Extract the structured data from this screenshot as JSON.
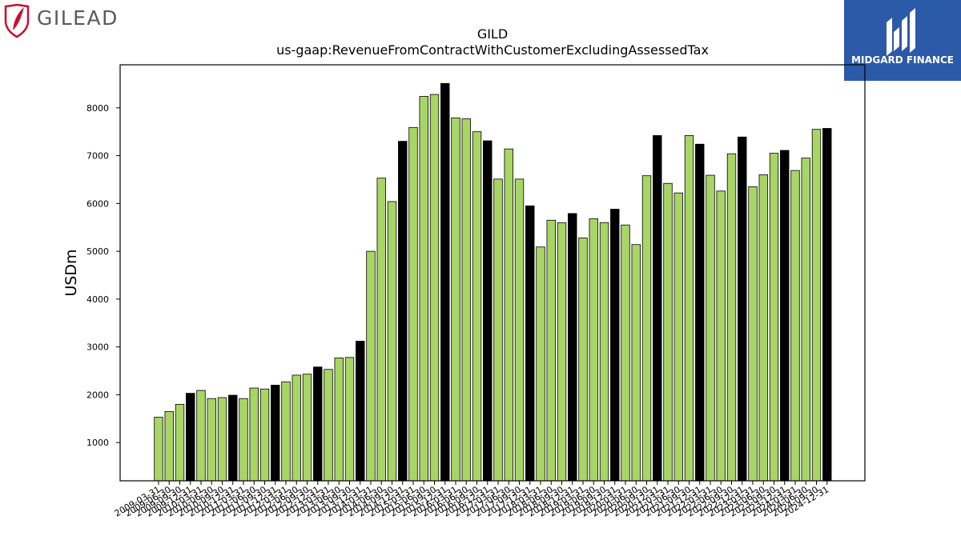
{
  "brand": {
    "company_logo_text": "GILEAD",
    "partner_logo_text": "MIDGARD FINANCE"
  },
  "colors": {
    "bar_quarter": "#a8d565",
    "bar_annual": "#000000",
    "gilead_red": "#c8102e",
    "gilead_gray": "#5a5a5a",
    "midgard_blue": "#2b5aa8"
  },
  "chart_data": {
    "type": "bar",
    "title": "GILD",
    "subtitle": "us-gaap:RevenueFromContractWithCustomerExcludingAssessedTax",
    "xlabel": "",
    "ylabel": "USDm",
    "ylim": [
      200,
      8900
    ],
    "yticks": [
      1000,
      2000,
      3000,
      4000,
      5000,
      6000,
      7000,
      8000
    ],
    "grid": false,
    "legend": "none",
    "categories": [
      "2009-03-31",
      "2009-06-30",
      "2009-09-30",
      "2009-12-31",
      "2010-03-31",
      "2010-06-30",
      "2010-09-30",
      "2010-12-31",
      "2011-03-31",
      "2011-06-30",
      "2011-09-30",
      "2011-12-31",
      "2012-03-31",
      "2012-06-30",
      "2012-09-30",
      "2012-12-31",
      "2013-03-31",
      "2013-06-30",
      "2013-09-30",
      "2013-12-31",
      "2014-03-31",
      "2014-06-30",
      "2014-09-30",
      "2014-12-31",
      "2015-03-31",
      "2015-06-30",
      "2015-09-30",
      "2015-12-31",
      "2016-03-31",
      "2016-06-30",
      "2016-09-30",
      "2016-12-31",
      "2017-03-31",
      "2017-06-30",
      "2017-09-30",
      "2017-12-31",
      "2018-03-31",
      "2018-06-30",
      "2018-09-30",
      "2018-12-31",
      "2019-03-31",
      "2019-06-30",
      "2019-09-30",
      "2019-12-31",
      "2020-03-31",
      "2020-06-30",
      "2020-09-30",
      "2020-12-31",
      "2021-03-31",
      "2021-06-30",
      "2021-09-30",
      "2021-12-31",
      "2022-03-31",
      "2022-06-30",
      "2022-09-30",
      "2022-12-31",
      "2023-03-31",
      "2023-06-30",
      "2023-09-30",
      "2023-12-31",
      "2024-03-31",
      "2024-06-30",
      "2024-09-30",
      "2024-12-31"
    ],
    "values": [
      1530,
      1650,
      1800,
      2030,
      2090,
      1920,
      1940,
      1990,
      1920,
      2140,
      2120,
      2200,
      2270,
      2410,
      2430,
      2580,
      2530,
      2770,
      2780,
      3120,
      5000,
      6530,
      6040,
      7300,
      7590,
      8240,
      8280,
      8510,
      7790,
      7770,
      7500,
      7310,
      6510,
      7140,
      6510,
      5950,
      5090,
      5650,
      5600,
      5790,
      5280,
      5680,
      5600,
      5880,
      5550,
      5140,
      6580,
      7420,
      6420,
      6220,
      7420,
      7240,
      6590,
      6260,
      7040,
      7390,
      6350,
      6600,
      7050,
      7110,
      6690,
      6950,
      7550,
      7570
    ],
    "annual_flags": [
      false,
      false,
      false,
      true,
      false,
      false,
      false,
      true,
      false,
      false,
      false,
      true,
      false,
      false,
      false,
      true,
      false,
      false,
      false,
      true,
      false,
      false,
      false,
      true,
      false,
      false,
      false,
      true,
      false,
      false,
      false,
      true,
      false,
      false,
      false,
      true,
      false,
      false,
      false,
      true,
      false,
      false,
      false,
      true,
      false,
      false,
      false,
      true,
      false,
      false,
      false,
      true,
      false,
      false,
      false,
      true,
      false,
      false,
      false,
      true,
      false,
      false,
      false,
      true
    ]
  }
}
